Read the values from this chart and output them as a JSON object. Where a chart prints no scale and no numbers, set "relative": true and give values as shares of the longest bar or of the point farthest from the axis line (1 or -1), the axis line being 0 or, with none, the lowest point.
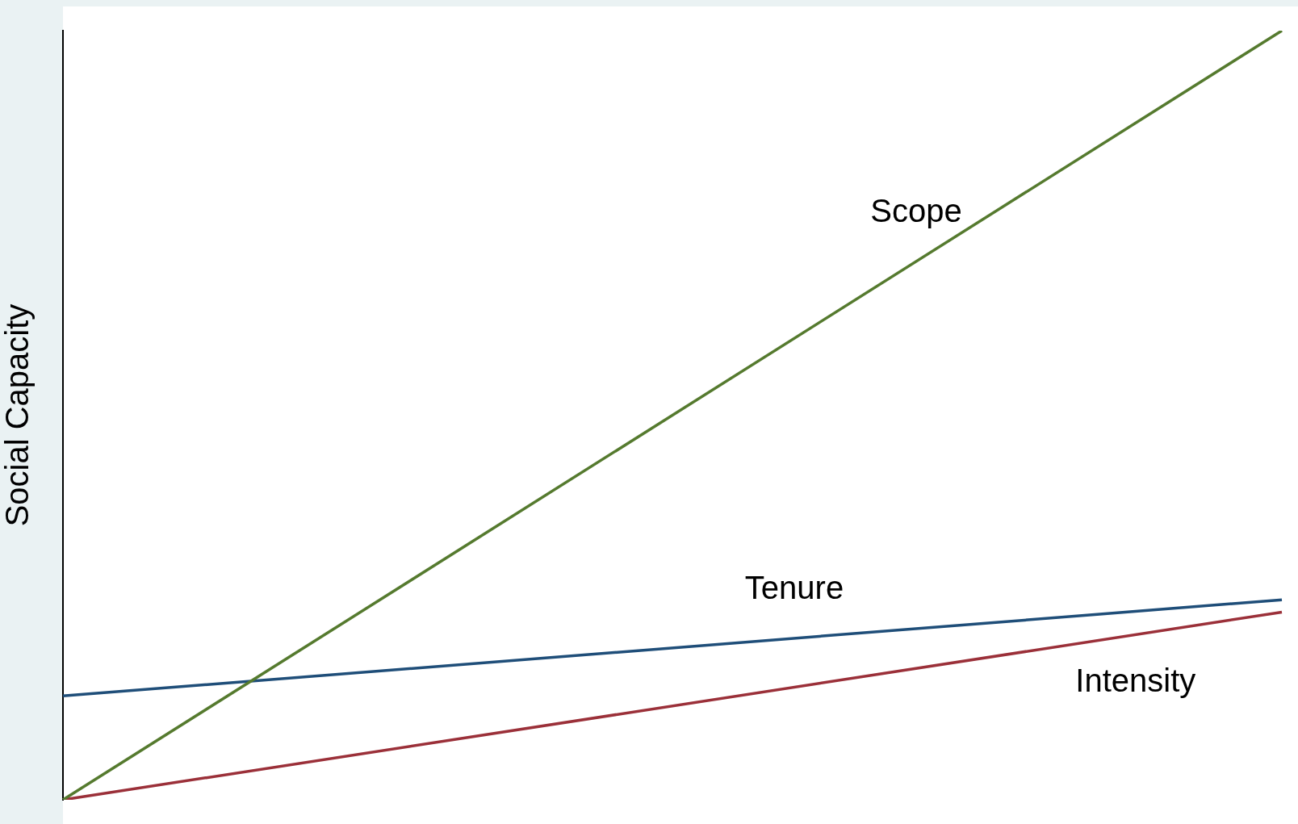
{
  "chart_data": {
    "type": "line",
    "relative": true,
    "ylabel": "Social Capacity",
    "categories": [
      null,
      null
    ],
    "grid": false,
    "legend": false,
    "marker": "none",
    "line_style": "solid",
    "series": [
      {
        "name": "Scope",
        "color": "#557a2e",
        "values": [
          0,
          1
        ]
      },
      {
        "name": "Tenure",
        "color": "#1f4e79",
        "values": [
          0.135,
          0.26
        ]
      },
      {
        "name": "Intensity",
        "color": "#9b3039",
        "values": [
          0,
          0.244
        ]
      }
    ]
  }
}
